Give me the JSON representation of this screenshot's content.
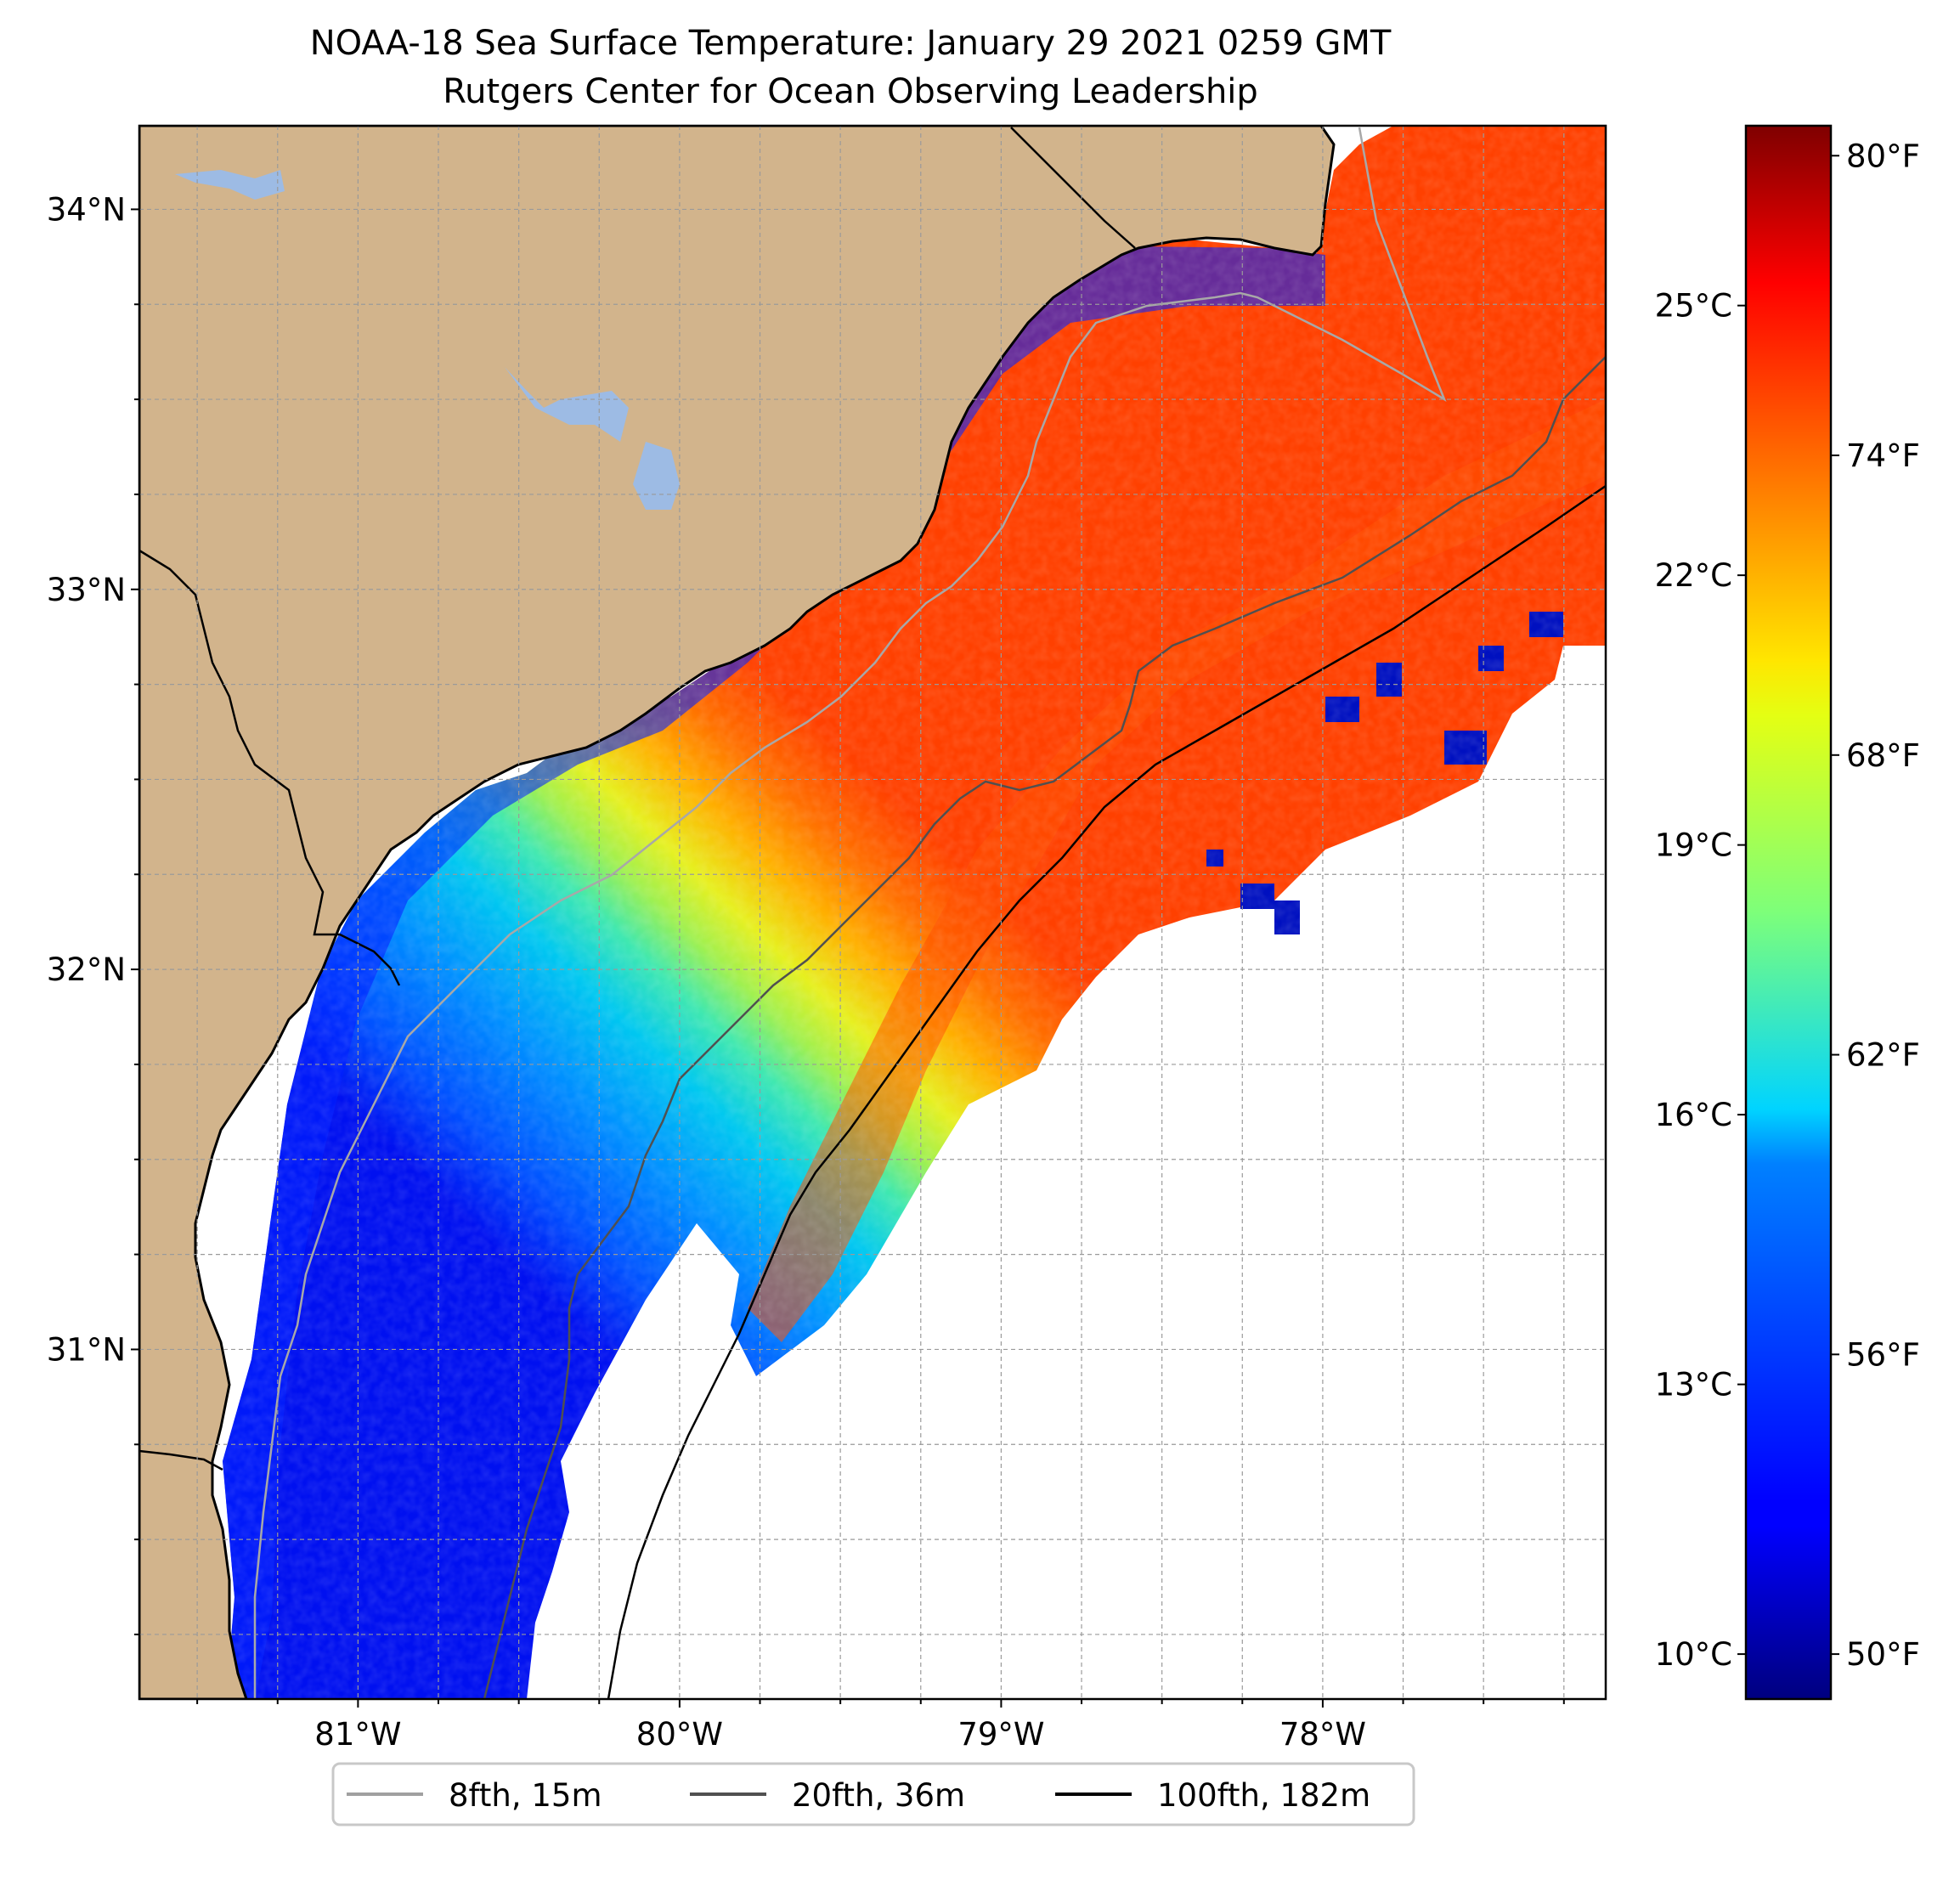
{
  "title": {
    "line1": "NOAA-18 Sea Surface Temperature: January 29 2021 0259 GMT",
    "line2": "Rutgers Center for Ocean Observing Leadership"
  },
  "map": {
    "lon_range": [
      -81.68,
      -77.12
    ],
    "lat_range": [
      30.08,
      34.22
    ],
    "lat_ticks": [
      {
        "value": 34,
        "label": "34°N"
      },
      {
        "value": 33,
        "label": "33°N"
      },
      {
        "value": 32,
        "label": "32°N"
      },
      {
        "value": 31,
        "label": "31°N"
      }
    ],
    "lon_ticks": [
      {
        "value": -81,
        "label": "81°W"
      },
      {
        "value": -80,
        "label": "80°W"
      },
      {
        "value": -79,
        "label": "79°W"
      },
      {
        "value": -78,
        "label": "78°W"
      }
    ],
    "colors": {
      "land": "#d2b48c",
      "lakes": "#9dbbe4",
      "coast": "#000000",
      "grid": "#9a9a9a"
    }
  },
  "colorbar": {
    "range_c": [
      9.5,
      27
    ],
    "celsius_ticks": [
      {
        "value": 25,
        "label": "25°C"
      },
      {
        "value": 22,
        "label": "22°C"
      },
      {
        "value": 19,
        "label": "19°C"
      },
      {
        "value": 16,
        "label": "16°C"
      },
      {
        "value": 13,
        "label": "13°C"
      },
      {
        "value": 10,
        "label": "10°C"
      }
    ],
    "fahrenheit_ticks": [
      {
        "value": 80,
        "label": "80°F"
      },
      {
        "value": 74,
        "label": "74°F"
      },
      {
        "value": 68,
        "label": "68°F"
      },
      {
        "value": 62,
        "label": "62°F"
      },
      {
        "value": 56,
        "label": "56°F"
      },
      {
        "value": 50,
        "label": "50°F"
      }
    ]
  },
  "legend": {
    "items": [
      {
        "label": "8fth, 15m",
        "color": "#a0a0a0",
        "icon": "isobath-15m-line-icon"
      },
      {
        "label": "20fth, 36m",
        "color": "#505050",
        "icon": "isobath-36m-line-icon"
      },
      {
        "label": "100fth, 182m",
        "color": "#000000",
        "icon": "isobath-182m-line-icon"
      }
    ]
  }
}
